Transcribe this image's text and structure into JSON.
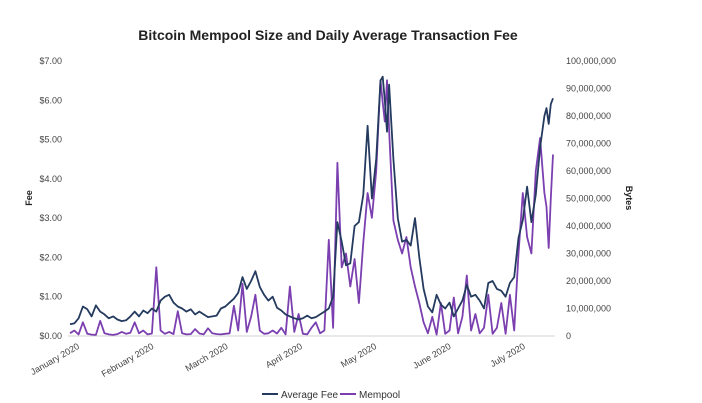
{
  "chart_data": {
    "type": "line",
    "title": "Bitcoin Mempool Size and Daily Average Transaction Fee",
    "ylabel": "Fee",
    "y2label": "Bytes",
    "ylim": [
      0,
      7
    ],
    "y2lim": [
      0,
      100000000
    ],
    "y_ticks": [
      "$0.00",
      "$1.00",
      "$2.00",
      "$3.00",
      "$4.00",
      "$5.00",
      "$6.00",
      "$7.00"
    ],
    "y2_ticks": [
      "0",
      "10,000,000",
      "20,000,000",
      "30,000,000",
      "40,000,000",
      "50,000,000",
      "60,000,000",
      "70,000,000",
      "80,000,000",
      "90,000,000",
      "100,000,000"
    ],
    "x_ticks": [
      "January 2020",
      "February 2020",
      "March 2020",
      "April 2020",
      "May 2020",
      "June 2020",
      "July 2020"
    ],
    "grid": false,
    "legend_position": "bottom",
    "series": [
      {
        "name": "Average Fee",
        "axis": "left",
        "color": "#243a5e",
        "points": [
          [
            0,
            0.3
          ],
          [
            2,
            0.32
          ],
          [
            4,
            0.45
          ],
          [
            6,
            0.75
          ],
          [
            8,
            0.68
          ],
          [
            10,
            0.5
          ],
          [
            12,
            0.78
          ],
          [
            14,
            0.62
          ],
          [
            16,
            0.55
          ],
          [
            18,
            0.45
          ],
          [
            20,
            0.5
          ],
          [
            22,
            0.42
          ],
          [
            24,
            0.38
          ],
          [
            26,
            0.4
          ],
          [
            28,
            0.5
          ],
          [
            30,
            0.62
          ],
          [
            32,
            0.5
          ],
          [
            34,
            0.65
          ],
          [
            36,
            0.58
          ],
          [
            38,
            0.7
          ],
          [
            40,
            0.62
          ],
          [
            42,
            0.9
          ],
          [
            44,
            1.0
          ],
          [
            46,
            1.05
          ],
          [
            48,
            0.85
          ],
          [
            50,
            0.75
          ],
          [
            52,
            0.7
          ],
          [
            54,
            0.62
          ],
          [
            56,
            0.68
          ],
          [
            58,
            0.55
          ],
          [
            60,
            0.62
          ],
          [
            62,
            0.55
          ],
          [
            64,
            0.48
          ],
          [
            66,
            0.5
          ],
          [
            68,
            0.52
          ],
          [
            70,
            0.7
          ],
          [
            72,
            0.75
          ],
          [
            74,
            0.85
          ],
          [
            76,
            0.95
          ],
          [
            78,
            1.1
          ],
          [
            80,
            1.5
          ],
          [
            82,
            1.2
          ],
          [
            84,
            1.4
          ],
          [
            86,
            1.65
          ],
          [
            88,
            1.25
          ],
          [
            90,
            1.05
          ],
          [
            92,
            0.9
          ],
          [
            94,
            1.0
          ],
          [
            96,
            0.72
          ],
          [
            98,
            0.65
          ],
          [
            100,
            0.55
          ],
          [
            102,
            0.5
          ],
          [
            104,
            0.45
          ],
          [
            106,
            0.42
          ],
          [
            108,
            0.45
          ],
          [
            110,
            0.52
          ],
          [
            112,
            0.45
          ],
          [
            114,
            0.48
          ],
          [
            116,
            0.55
          ],
          [
            118,
            0.62
          ],
          [
            120,
            0.7
          ],
          [
            122,
            1.0
          ],
          [
            124,
            2.9
          ],
          [
            126,
            2.4
          ],
          [
            128,
            1.8
          ],
          [
            130,
            1.85
          ],
          [
            132,
            2.8
          ],
          [
            134,
            2.9
          ],
          [
            136,
            3.6
          ],
          [
            138,
            5.35
          ],
          [
            140,
            3.5
          ],
          [
            142,
            4.5
          ],
          [
            144,
            6.5
          ],
          [
            145,
            6.6
          ],
          [
            146,
            6.0
          ],
          [
            147,
            5.2
          ],
          [
            148,
            6.4
          ],
          [
            150,
            4.5
          ],
          [
            152,
            3.0
          ],
          [
            154,
            2.4
          ],
          [
            156,
            2.45
          ],
          [
            158,
            2.3
          ],
          [
            160,
            3.0
          ],
          [
            162,
            2.0
          ],
          [
            164,
            1.2
          ],
          [
            166,
            0.75
          ],
          [
            168,
            0.6
          ],
          [
            170,
            1.05
          ],
          [
            172,
            0.8
          ],
          [
            174,
            0.7
          ],
          [
            176,
            0.85
          ],
          [
            178,
            0.5
          ],
          [
            180,
            0.7
          ],
          [
            182,
            0.9
          ],
          [
            184,
            1.3
          ],
          [
            186,
            1.0
          ],
          [
            188,
            1.05
          ],
          [
            190,
            0.9
          ],
          [
            192,
            0.7
          ],
          [
            194,
            1.35
          ],
          [
            196,
            1.4
          ],
          [
            198,
            1.2
          ],
          [
            200,
            1.15
          ],
          [
            202,
            1.0
          ],
          [
            204,
            1.35
          ],
          [
            206,
            1.5
          ],
          [
            208,
            2.5
          ],
          [
            210,
            2.95
          ],
          [
            212,
            3.8
          ],
          [
            214,
            2.9
          ],
          [
            216,
            3.6
          ],
          [
            218,
            4.8
          ],
          [
            220,
            5.6
          ],
          [
            221,
            5.8
          ],
          [
            222,
            5.4
          ],
          [
            223,
            5.9
          ],
          [
            224,
            6.05
          ]
        ]
      },
      {
        "name": "Mempool",
        "axis": "right",
        "color": "#7b3fb0",
        "points": [
          [
            0,
            1000000
          ],
          [
            2,
            2000000
          ],
          [
            4,
            600000
          ],
          [
            6,
            5000000
          ],
          [
            8,
            800000
          ],
          [
            10,
            500000
          ],
          [
            12,
            400000
          ],
          [
            14,
            5500000
          ],
          [
            16,
            1000000
          ],
          [
            18,
            600000
          ],
          [
            20,
            400000
          ],
          [
            22,
            700000
          ],
          [
            24,
            1500000
          ],
          [
            26,
            800000
          ],
          [
            28,
            1200000
          ],
          [
            30,
            5000000
          ],
          [
            32,
            1000000
          ],
          [
            34,
            2000000
          ],
          [
            36,
            600000
          ],
          [
            38,
            900000
          ],
          [
            40,
            25000000
          ],
          [
            42,
            2000000
          ],
          [
            44,
            800000
          ],
          [
            46,
            1500000
          ],
          [
            48,
            700000
          ],
          [
            50,
            9000000
          ],
          [
            52,
            1000000
          ],
          [
            54,
            600000
          ],
          [
            56,
            700000
          ],
          [
            58,
            2500000
          ],
          [
            60,
            900000
          ],
          [
            62,
            600000
          ],
          [
            64,
            2800000
          ],
          [
            66,
            1000000
          ],
          [
            68,
            700000
          ],
          [
            70,
            600000
          ],
          [
            72,
            800000
          ],
          [
            74,
            1000000
          ],
          [
            76,
            11000000
          ],
          [
            78,
            2000000
          ],
          [
            80,
            19000000
          ],
          [
            82,
            1500000
          ],
          [
            84,
            7000000
          ],
          [
            86,
            15000000
          ],
          [
            88,
            2000000
          ],
          [
            90,
            800000
          ],
          [
            92,
            1000000
          ],
          [
            94,
            2000000
          ],
          [
            96,
            900000
          ],
          [
            98,
            3000000
          ],
          [
            100,
            600000
          ],
          [
            102,
            18000000
          ],
          [
            104,
            1500000
          ],
          [
            106,
            8000000
          ],
          [
            108,
            800000
          ],
          [
            110,
            600000
          ],
          [
            112,
            3000000
          ],
          [
            114,
            5000000
          ],
          [
            116,
            1000000
          ],
          [
            118,
            2000000
          ],
          [
            120,
            35000000
          ],
          [
            122,
            3000000
          ],
          [
            124,
            63000000
          ],
          [
            126,
            25000000
          ],
          [
            128,
            30000000
          ],
          [
            130,
            18000000
          ],
          [
            132,
            28000000
          ],
          [
            134,
            12000000
          ],
          [
            136,
            34000000
          ],
          [
            138,
            52000000
          ],
          [
            140,
            43000000
          ],
          [
            142,
            60000000
          ],
          [
            144,
            93000000
          ],
          [
            145,
            85000000
          ],
          [
            146,
            78000000
          ],
          [
            147,
            93000000
          ],
          [
            148,
            75000000
          ],
          [
            150,
            42000000
          ],
          [
            152,
            35000000
          ],
          [
            154,
            30000000
          ],
          [
            156,
            36000000
          ],
          [
            158,
            25000000
          ],
          [
            160,
            18000000
          ],
          [
            162,
            12000000
          ],
          [
            164,
            5000000
          ],
          [
            166,
            1000000
          ],
          [
            168,
            7000000
          ],
          [
            170,
            500000
          ],
          [
            172,
            12000000
          ],
          [
            174,
            800000
          ],
          [
            176,
            2000000
          ],
          [
            178,
            14000000
          ],
          [
            180,
            1000000
          ],
          [
            182,
            7000000
          ],
          [
            184,
            22000000
          ],
          [
            186,
            2000000
          ],
          [
            188,
            8000000
          ],
          [
            190,
            1000000
          ],
          [
            192,
            3000000
          ],
          [
            194,
            15000000
          ],
          [
            196,
            800000
          ],
          [
            198,
            3000000
          ],
          [
            200,
            12000000
          ],
          [
            202,
            800000
          ],
          [
            204,
            15000000
          ],
          [
            206,
            2000000
          ],
          [
            208,
            30000000
          ],
          [
            210,
            52000000
          ],
          [
            212,
            36000000
          ],
          [
            214,
            30000000
          ],
          [
            216,
            60000000
          ],
          [
            218,
            72000000
          ],
          [
            220,
            52000000
          ],
          [
            221,
            47000000
          ],
          [
            222,
            32000000
          ],
          [
            223,
            50000000
          ],
          [
            224,
            66000000
          ]
        ]
      }
    ]
  }
}
